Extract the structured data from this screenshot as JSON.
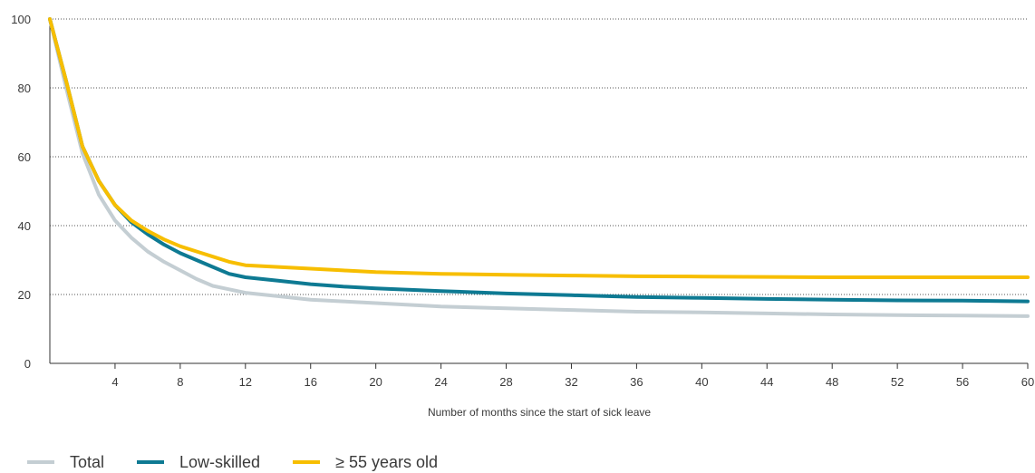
{
  "chart_data": {
    "type": "line",
    "xlabel": "Number of months since the start of sick leave",
    "ylabel": "",
    "xlim": [
      0,
      60
    ],
    "ylim": [
      0,
      100
    ],
    "x_ticks": [
      4,
      8,
      12,
      16,
      20,
      24,
      28,
      32,
      36,
      40,
      44,
      48,
      52,
      56,
      60
    ],
    "y_ticks": [
      0,
      20,
      40,
      60,
      80,
      100
    ],
    "grid": "horizontal dotted",
    "legend_position": "bottom-left",
    "x": [
      0,
      1,
      2,
      3,
      4,
      5,
      6,
      7,
      8,
      9,
      10,
      11,
      12,
      14,
      16,
      18,
      20,
      24,
      28,
      32,
      36,
      40,
      44,
      48,
      52,
      56,
      60
    ],
    "series": [
      {
        "name": "Total",
        "color": "#c4ced3",
        "values": [
          100,
          80,
          61,
          49,
          41.5,
          36.5,
          32.5,
          29.5,
          27,
          24.5,
          22.5,
          21.5,
          20.5,
          19.5,
          18.5,
          18,
          17.5,
          16.5,
          16,
          15.5,
          15,
          14.8,
          14.5,
          14.2,
          14,
          13.9,
          13.7
        ]
      },
      {
        "name": "Low-skilled",
        "color": "#0e7a93",
        "values": [
          100,
          82,
          63,
          53,
          46,
          41,
          37.5,
          34.5,
          32,
          30,
          28,
          26,
          25,
          24,
          23,
          22.3,
          21.8,
          21,
          20.3,
          19.8,
          19.3,
          19,
          18.7,
          18.5,
          18.3,
          18.2,
          18
        ]
      },
      {
        "name": "≥ 55 years old",
        "color": "#f7be00",
        "values": [
          100,
          82,
          63,
          53,
          46,
          41.5,
          38.5,
          36,
          34,
          32.5,
          31,
          29.5,
          28.5,
          28,
          27.5,
          27,
          26.5,
          26,
          25.7,
          25.5,
          25.3,
          25.2,
          25.1,
          25,
          25,
          25,
          25
        ]
      }
    ]
  }
}
